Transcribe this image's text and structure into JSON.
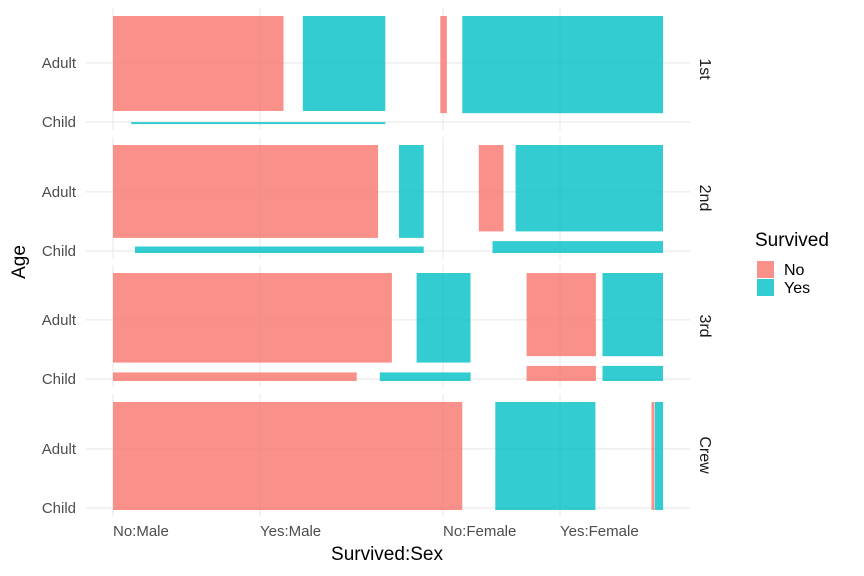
{
  "chart_data": {
    "type": "mosaic",
    "xlabel": "Survived:Sex",
    "ylabel": "Age",
    "x_ticks": [
      "No:Male",
      "Yes:Male",
      "No:Female",
      "Yes:Female"
    ],
    "y_ticks": [
      "Adult",
      "Child"
    ],
    "facets": [
      "1st",
      "2nd",
      "3rd",
      "Crew"
    ],
    "legend": {
      "title": "Survived",
      "position": "right",
      "entries": [
        {
          "label": "No",
          "color": "#F8766D"
        },
        {
          "label": "Yes",
          "color": "#00BFC4"
        }
      ]
    },
    "grid": true,
    "tiles": [
      {
        "facet": "1st",
        "survived": "No",
        "age": "Adult",
        "x0": 0.0,
        "x1": 0.31,
        "y0": 0.12,
        "y1": 1.0
      },
      {
        "facet": "1st",
        "survived": "Yes",
        "age": "Adult",
        "x0": 0.345,
        "x1": 0.495,
        "y0": 0.12,
        "y1": 1.0
      },
      {
        "facet": "1st",
        "survived": "No",
        "age": "Adult",
        "x0": 0.595,
        "x1": 0.607,
        "y0": 0.1,
        "y1": 1.0
      },
      {
        "facet": "1st",
        "survived": "Yes",
        "age": "Adult",
        "x0": 0.635,
        "x1": 1.0,
        "y0": 0.1,
        "y1": 1.0
      },
      {
        "facet": "1st",
        "survived": "Yes",
        "age": "Child",
        "x0": 0.033,
        "x1": 0.495,
        "y0": 0.0,
        "y1": 0.018
      },
      {
        "facet": "2nd",
        "survived": "No",
        "age": "Adult",
        "x0": 0.0,
        "x1": 0.482,
        "y0": 0.14,
        "y1": 1.0
      },
      {
        "facet": "2nd",
        "survived": "Yes",
        "age": "Adult",
        "x0": 0.52,
        "x1": 0.565,
        "y0": 0.14,
        "y1": 1.0
      },
      {
        "facet": "2nd",
        "survived": "Yes",
        "age": "Child",
        "x0": 0.04,
        "x1": 0.565,
        "y0": 0.0,
        "y1": 0.06
      },
      {
        "facet": "2nd",
        "survived": "No",
        "age": "Adult",
        "x0": 0.665,
        "x1": 0.71,
        "y0": 0.2,
        "y1": 1.0
      },
      {
        "facet": "2nd",
        "survived": "Yes",
        "age": "Adult",
        "x0": 0.732,
        "x1": 1.0,
        "y0": 0.2,
        "y1": 1.0
      },
      {
        "facet": "2nd",
        "survived": "Yes",
        "age": "Child",
        "x0": 0.69,
        "x1": 1.0,
        "y0": 0.0,
        "y1": 0.11
      },
      {
        "facet": "3rd",
        "survived": "No",
        "age": "Adult",
        "x0": 0.0,
        "x1": 0.507,
        "y0": 0.17,
        "y1": 1.0
      },
      {
        "facet": "3rd",
        "survived": "No",
        "age": "Child",
        "x0": 0.0,
        "x1": 0.443,
        "y0": 0.0,
        "y1": 0.08
      },
      {
        "facet": "3rd",
        "survived": "Yes",
        "age": "Adult",
        "x0": 0.552,
        "x1": 0.65,
        "y0": 0.17,
        "y1": 1.0
      },
      {
        "facet": "3rd",
        "survived": "Yes",
        "age": "Child",
        "x0": 0.485,
        "x1": 0.65,
        "y0": 0.0,
        "y1": 0.08
      },
      {
        "facet": "3rd",
        "survived": "No",
        "age": "Adult",
        "x0": 0.752,
        "x1": 0.878,
        "y0": 0.23,
        "y1": 1.0
      },
      {
        "facet": "3rd",
        "survived": "No",
        "age": "Child",
        "x0": 0.752,
        "x1": 0.878,
        "y0": 0.0,
        "y1": 0.14
      },
      {
        "facet": "3rd",
        "survived": "Yes",
        "age": "Adult",
        "x0": 0.89,
        "x1": 1.0,
        "y0": 0.23,
        "y1": 1.0
      },
      {
        "facet": "3rd",
        "survived": "Yes",
        "age": "Child",
        "x0": 0.89,
        "x1": 1.0,
        "y0": 0.0,
        "y1": 0.14
      },
      {
        "facet": "Crew",
        "survived": "No",
        "age": "Adult",
        "x0": 0.0,
        "x1": 0.635,
        "y0": 0.0,
        "y1": 1.0
      },
      {
        "facet": "Crew",
        "survived": "Yes",
        "age": "Adult",
        "x0": 0.695,
        "x1": 0.877,
        "y0": 0.0,
        "y1": 1.0
      },
      {
        "facet": "Crew",
        "survived": "No",
        "age": "Adult",
        "x0": 0.979,
        "x1": 0.984,
        "y0": 0.0,
        "y1": 1.0
      },
      {
        "facet": "Crew",
        "survived": "Yes",
        "age": "Adult",
        "x0": 0.985,
        "x1": 1.0,
        "y0": 0.0,
        "y1": 1.0
      }
    ]
  }
}
